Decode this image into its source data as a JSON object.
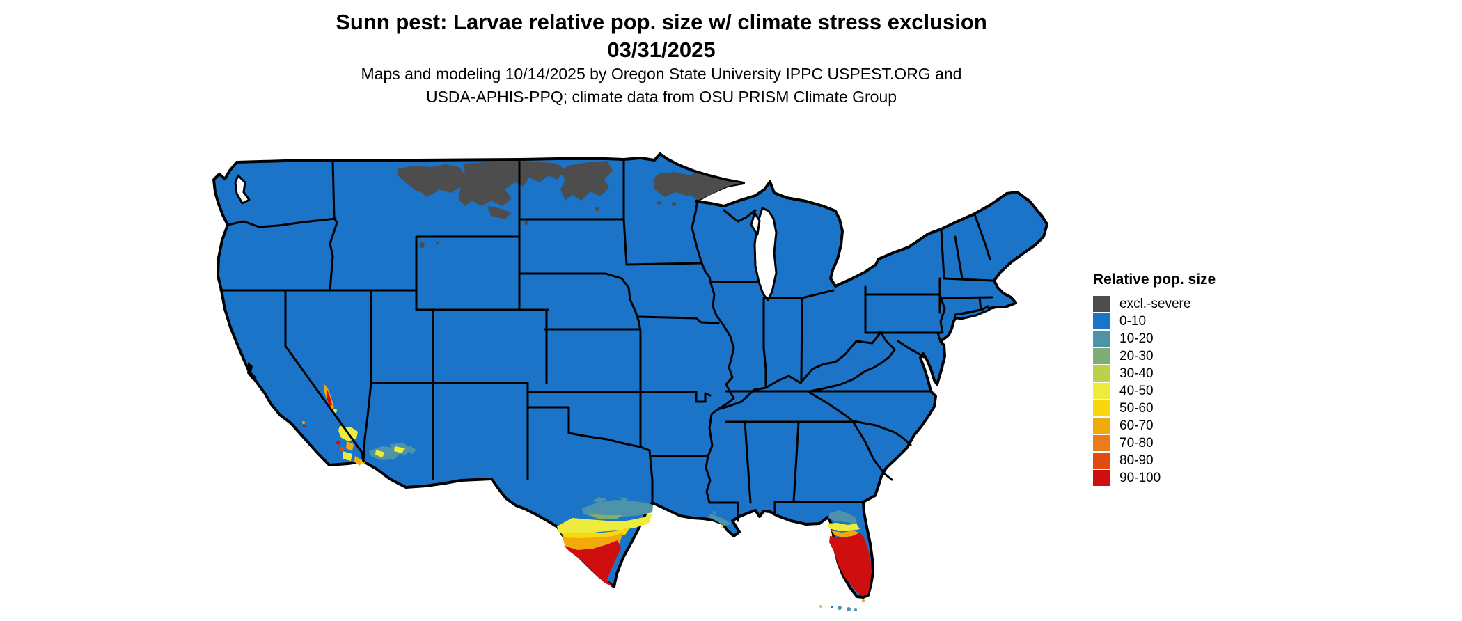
{
  "title": {
    "line1": "Sunn pest: Larvae relative pop. size w/ climate stress exclusion",
    "line2": "03/31/2025"
  },
  "subtitle": {
    "line1": "Maps and modeling 10/14/2025 by Oregon State University IPPC USPEST.ORG and",
    "line2": "USDA-APHIS-PPQ; climate data from OSU PRISM Climate Group"
  },
  "colors": {
    "excl": "#4D4D4D",
    "c0010": "#1B74C8",
    "c1020": "#4D93A9",
    "c2030": "#7EAE73",
    "c3040": "#BBD14A",
    "c4050": "#EFEB3C",
    "c5060": "#F8D70F",
    "c6070": "#F1A90C",
    "c7080": "#EA7C1B",
    "c8090": "#DF4B11",
    "c90100": "#CF0E10"
  },
  "legend": {
    "title": "Relative pop. size",
    "items": [
      {
        "key": "excl",
        "label": "excl.-severe"
      },
      {
        "key": "c0010",
        "label": "0-10"
      },
      {
        "key": "c1020",
        "label": "10-20"
      },
      {
        "key": "c2030",
        "label": "20-30"
      },
      {
        "key": "c3040",
        "label": "30-40"
      },
      {
        "key": "c4050",
        "label": "40-50"
      },
      {
        "key": "c5060",
        "label": "50-60"
      },
      {
        "key": "c6070",
        "label": "60-70"
      },
      {
        "key": "c7080",
        "label": "70-80"
      },
      {
        "key": "c8090",
        "label": "80-90"
      },
      {
        "key": "c90100",
        "label": "90-100"
      }
    ]
  },
  "map": {
    "region": "Contiguous United States",
    "base_class": "0-10",
    "visible_patterns": [
      {
        "area": "northern Montana / North Dakota / northern Minnesota",
        "class": "excl.-severe"
      },
      {
        "area": "south Texas (Rio Grande valley to tip)",
        "class": "gradient 10-20 through 90-100, red at tip"
      },
      {
        "area": "central & south Florida peninsula",
        "class": "gradient 10-20 through 90-100, red in south"
      },
      {
        "area": "southern California / southwestern Arizona (Imperial, Yuma, Death Valley)",
        "class": "scattered 10-20 to 90-100 patches"
      },
      {
        "area": "coastal Louisiana",
        "class": "small 10-20 patches"
      },
      {
        "area": "northwest Wyoming (Yellowstone)",
        "class": "small excl.-severe speck"
      }
    ]
  }
}
